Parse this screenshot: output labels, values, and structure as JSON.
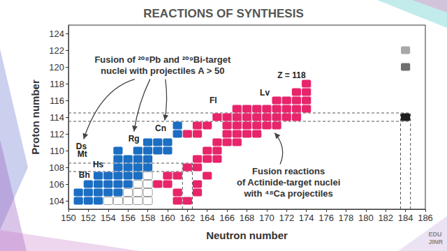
{
  "chart_data": {
    "type": "scatter",
    "title": "REACTIONS OF SYNTHESIS",
    "x_label": "Neutron number",
    "y_label": "Proton number",
    "xlim": [
      150,
      186
    ],
    "xticks": [
      150,
      152,
      154,
      156,
      158,
      160,
      162,
      164,
      166,
      168,
      170,
      172,
      174,
      176,
      178,
      180,
      182,
      184,
      186
    ],
    "ylim": [
      103,
      125
    ],
    "yticks": [
      104,
      106,
      108,
      110,
      112,
      114,
      116,
      118,
      120,
      122,
      124
    ],
    "grid": false,
    "series": [
      {
        "color": "#1b6ec2",
        "marker": "square",
        "values": [
          [
            151,
            104
          ],
          [
            152,
            104
          ],
          [
            153,
            104
          ],
          [
            151,
            105
          ],
          [
            152,
            105
          ],
          [
            153,
            105
          ],
          [
            154,
            105
          ],
          [
            155,
            105
          ],
          [
            152,
            106
          ],
          [
            153,
            106
          ],
          [
            154,
            106
          ],
          [
            155,
            106
          ],
          [
            156,
            106
          ],
          [
            153,
            107
          ],
          [
            154,
            107
          ],
          [
            155,
            107
          ],
          [
            156,
            107
          ],
          [
            157,
            107
          ],
          [
            155,
            108
          ],
          [
            156,
            108
          ],
          [
            157,
            108
          ],
          [
            158,
            108
          ],
          [
            155,
            109
          ],
          [
            156,
            109
          ],
          [
            157,
            109
          ],
          [
            158,
            109
          ],
          [
            155,
            110
          ],
          [
            157,
            110
          ],
          [
            158,
            110
          ],
          [
            159,
            110
          ],
          [
            160,
            110
          ],
          [
            158,
            111
          ],
          [
            159,
            111
          ],
          [
            160,
            111
          ],
          [
            161,
            112
          ],
          [
            161,
            113
          ]
        ]
      },
      {
        "color": "#e8246b",
        "marker": "square",
        "values": [
          [
            161,
            104
          ],
          [
            162,
            104
          ],
          [
            161,
            105
          ],
          [
            163,
            105
          ],
          [
            159,
            106
          ],
          [
            160,
            106
          ],
          [
            163,
            106
          ],
          [
            160,
            107
          ],
          [
            161,
            107
          ],
          [
            164,
            107
          ],
          [
            162,
            108
          ],
          [
            163,
            108
          ],
          [
            163,
            109
          ],
          [
            164,
            109
          ],
          [
            165,
            109
          ],
          [
            164,
            110
          ],
          [
            165,
            110
          ],
          [
            165,
            111
          ],
          [
            166,
            111
          ],
          [
            167,
            111
          ],
          [
            162,
            112
          ],
          [
            163,
            112
          ],
          [
            166,
            112
          ],
          [
            167,
            112
          ],
          [
            168,
            112
          ],
          [
            169,
            112
          ],
          [
            163,
            113
          ],
          [
            164,
            113
          ],
          [
            166,
            113
          ],
          [
            167,
            113
          ],
          [
            168,
            113
          ],
          [
            169,
            113
          ],
          [
            170,
            113
          ],
          [
            171,
            113
          ],
          [
            165,
            114
          ],
          [
            166,
            114
          ],
          [
            167,
            114
          ],
          [
            168,
            114
          ],
          [
            169,
            114
          ],
          [
            170,
            114
          ],
          [
            171,
            114
          ],
          [
            172,
            114
          ],
          [
            173,
            114
          ],
          [
            167,
            115
          ],
          [
            168,
            115
          ],
          [
            169,
            115
          ],
          [
            170,
            115
          ],
          [
            171,
            115
          ],
          [
            172,
            115
          ],
          [
            173,
            115
          ],
          [
            174,
            115
          ],
          [
            171,
            116
          ],
          [
            172,
            116
          ],
          [
            173,
            116
          ],
          [
            174,
            116
          ],
          [
            173,
            117
          ],
          [
            174,
            117
          ],
          [
            174,
            118
          ]
        ]
      },
      {
        "color": "#9e9e9e",
        "marker": "open_square",
        "values": [
          [
            154,
            104
          ],
          [
            155,
            104
          ],
          [
            156,
            104
          ],
          [
            157,
            104
          ],
          [
            158,
            104
          ],
          [
            156,
            105
          ],
          [
            157,
            105
          ],
          [
            158,
            105
          ],
          [
            157,
            106
          ],
          [
            158,
            106
          ],
          [
            158,
            107
          ]
        ]
      },
      {
        "color": "#a8a8a8",
        "marker": "square",
        "values": [
          [
            184,
            122
          ]
        ]
      },
      {
        "color": "#6f6f6f",
        "marker": "square",
        "values": [
          [
            184,
            120
          ]
        ]
      },
      {
        "color": "#1e1e1e",
        "marker": "square",
        "values": [
          [
            184,
            114
          ]
        ]
      }
    ],
    "shell_closures": [
      {
        "neutrons": 162,
        "protons": 108
      },
      {
        "neutrons": 184,
        "protons": 114
      }
    ],
    "annotations": [
      {
        "text": "Fusion of ²⁰⁸Pb and ²⁰⁹Bi-target\nnuclei with projectiles A > 50",
        "x": 159.5,
        "y": 120.2
      },
      {
        "text": "Fusion reactions\nof Actinide-target nuclei\nwith ⁴⁸Ca projectiles",
        "x": 172.2,
        "y": 106.2
      }
    ],
    "element_labels": [
      {
        "text": "Bh",
        "x": 151.6,
        "y": 107.1
      },
      {
        "text": "Hs",
        "x": 153,
        "y": 108.3
      },
      {
        "text": "Mt",
        "x": 151.4,
        "y": 109.6
      },
      {
        "text": "Ds",
        "x": 151.3,
        "y": 110.5
      },
      {
        "text": "Rg",
        "x": 156.6,
        "y": 111.4
      },
      {
        "text": "Cn",
        "x": 159.3,
        "y": 112.7
      },
      {
        "text": "Fl",
        "x": 164.6,
        "y": 116
      },
      {
        "text": "Lv",
        "x": 169.8,
        "y": 116.9
      },
      {
        "text": "Z = 118",
        "x": 172.5,
        "y": 119
      }
    ],
    "logo": [
      "EDU",
      "JINR"
    ]
  }
}
